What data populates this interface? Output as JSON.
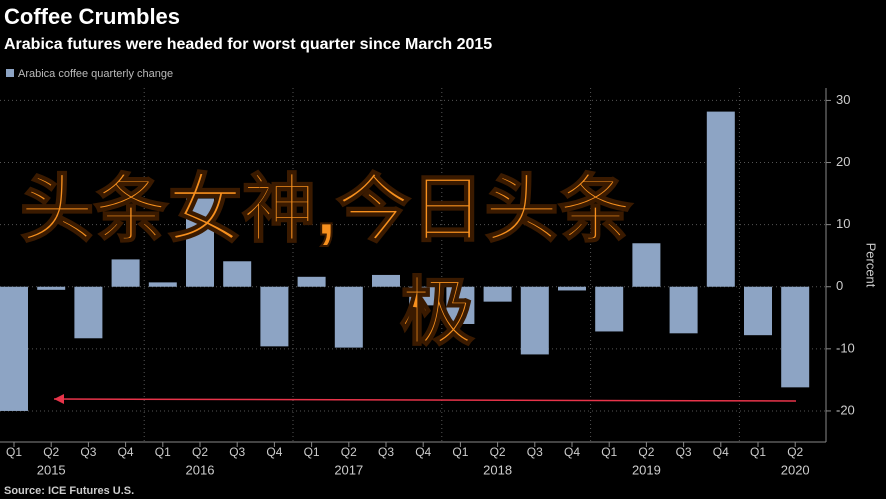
{
  "chart_data": {
    "type": "bar",
    "title": "Coffee Crumbles",
    "subtitle": "Arabica futures were headed for worst quarter since March 2015",
    "source": "Source: ICE Futures U.S.",
    "y_axis_label": "Percent",
    "watermark": [
      "头条女神,今日头条",
      "极"
    ],
    "categories": [
      "Q1",
      "Q2",
      "Q3",
      "Q4",
      "Q1",
      "Q2",
      "Q3",
      "Q4",
      "Q1",
      "Q2",
      "Q3",
      "Q4",
      "Q1",
      "Q2",
      "Q3",
      "Q4",
      "Q1",
      "Q2",
      "Q3",
      "Q4",
      "Q1",
      "Q2"
    ],
    "category_years": [
      null,
      "2015",
      null,
      null,
      null,
      "2016",
      null,
      null,
      null,
      "2017",
      null,
      null,
      null,
      "2018",
      null,
      null,
      null,
      "2019",
      null,
      null,
      null,
      "2020"
    ],
    "series": [
      {
        "name": "Arabica coffee quarterly change",
        "color": "#8da4c4",
        "values": [
          -20,
          -0.5,
          -8.3,
          4.4,
          0.7,
          14.2,
          4.1,
          -9.6,
          1.6,
          -9.8,
          1.9,
          -3,
          -6,
          -2.4,
          -10.9,
          -0.6,
          -7.2,
          7,
          -7.5,
          28.2,
          -7.8,
          -16.2
        ]
      }
    ],
    "ylim": [
      -25,
      32
    ],
    "yticks": [
      -20,
      -10,
      0,
      10,
      20,
      30
    ],
    "grid": true
  }
}
